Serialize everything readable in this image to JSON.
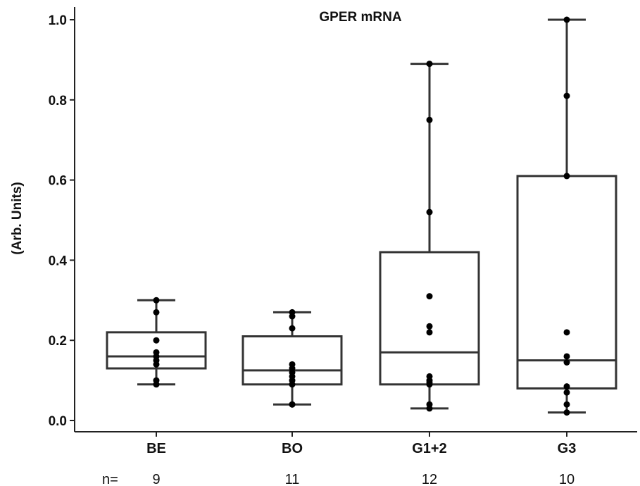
{
  "chart_data": {
    "type": "box",
    "title": "GPER mRNA",
    "ylabel": "(Arb. Units)",
    "xlabel": "",
    "ylim": [
      0.0,
      1.0
    ],
    "yticks": [
      "0.0",
      "0.2",
      "0.4",
      "0.6",
      "0.8",
      "1.0"
    ],
    "categories": [
      "BE",
      "BO",
      "G1+2",
      "G3"
    ],
    "n_prefix": "n=",
    "n_values": [
      "9",
      "11",
      "12",
      "10"
    ],
    "boxes": [
      {
        "name": "BE",
        "min": 0.09,
        "q1": 0.13,
        "median": 0.16,
        "q3": 0.22,
        "max": 0.3,
        "points": [
          0.3,
          0.27,
          0.2,
          0.17,
          0.16,
          0.15,
          0.14,
          0.1,
          0.09
        ]
      },
      {
        "name": "BO",
        "min": 0.04,
        "q1": 0.09,
        "median": 0.125,
        "q3": 0.21,
        "max": 0.27,
        "points": [
          0.27,
          0.26,
          0.23,
          0.14,
          0.13,
          0.12,
          0.11,
          0.1,
          0.09,
          0.04,
          0.04
        ]
      },
      {
        "name": "G1+2",
        "min": 0.03,
        "q1": 0.09,
        "median": 0.17,
        "q3": 0.42,
        "max": 0.89,
        "points": [
          0.89,
          0.75,
          0.52,
          0.31,
          0.235,
          0.22,
          0.11,
          0.1,
          0.095,
          0.09,
          0.04,
          0.03
        ]
      },
      {
        "name": "G3",
        "min": 0.02,
        "q1": 0.08,
        "median": 0.15,
        "q3": 0.61,
        "max": 1.0,
        "points": [
          1.0,
          0.81,
          0.61,
          0.22,
          0.16,
          0.145,
          0.085,
          0.07,
          0.04,
          0.02
        ]
      }
    ]
  }
}
